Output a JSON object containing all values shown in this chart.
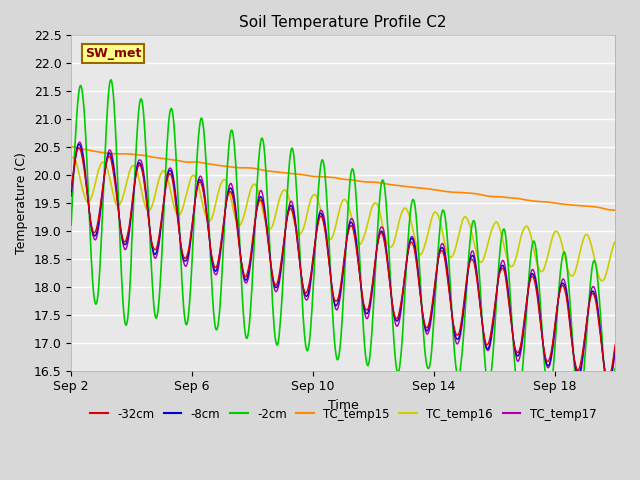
{
  "title": "Soil Temperature Profile C2",
  "xlabel": "Time",
  "ylabel": "Temperature (C)",
  "ylim": [
    16.5,
    22.5
  ],
  "fig_facecolor": "#d8d8d8",
  "ax_facecolor": "#e8e8e8",
  "annotation_text": "SW_met",
  "annotation_bg": "#ffff88",
  "annotation_border": "#996600",
  "xtick_labels": [
    "Sep 2",
    "Sep 6",
    "Sep 10",
    "Sep 14",
    "Sep 18"
  ],
  "xtick_positions": [
    0,
    4,
    8,
    12,
    16
  ],
  "series_colors": {
    "depth_32cm": "#dd0000",
    "depth_8cm": "#0000cc",
    "depth_2cm": "#00cc00",
    "TC_temp15": "#ff8800",
    "TC_temp16": "#cccc00",
    "TC_temp17": "#aa00aa"
  },
  "legend_labels": [
    "-32cm",
    "-8cm",
    "-2cm",
    "TC_temp15",
    "TC_temp16",
    "TC_temp17"
  ],
  "legend_colors": [
    "#dd0000",
    "#0000cc",
    "#00cc00",
    "#ff8800",
    "#cccc00",
    "#aa00aa"
  ],
  "days_total": 18,
  "pts_per_day": 48
}
